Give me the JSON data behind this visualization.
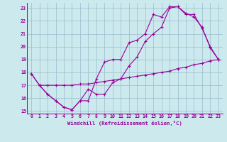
{
  "xlabel": "Windchill (Refroidissement éolien,°C)",
  "xlim": [
    -0.5,
    23.5
  ],
  "ylim": [
    14.8,
    23.4
  ],
  "yticks": [
    15,
    16,
    17,
    18,
    19,
    20,
    21,
    22,
    23
  ],
  "xticks": [
    0,
    1,
    2,
    3,
    4,
    5,
    6,
    7,
    8,
    9,
    10,
    11,
    12,
    13,
    14,
    15,
    16,
    17,
    18,
    19,
    20,
    21,
    22,
    23
  ],
  "bg_color": "#cce9ee",
  "line_color": "#990099",
  "grid_color": "#99bbcc",
  "line1_x": [
    0,
    1,
    2,
    3,
    4,
    5,
    6,
    7,
    8,
    9,
    10,
    11,
    12,
    13,
    14,
    15,
    16,
    17,
    18,
    19,
    20,
    21,
    22,
    23
  ],
  "line1_y": [
    17.9,
    17.0,
    16.3,
    15.8,
    15.3,
    15.1,
    15.8,
    15.8,
    17.5,
    18.8,
    19.0,
    19.0,
    20.3,
    20.5,
    21.0,
    22.5,
    22.3,
    23.1,
    23.1,
    22.6,
    22.3,
    21.5,
    19.9,
    19.0
  ],
  "line2_x": [
    1,
    2,
    3,
    4,
    5,
    6,
    7,
    8,
    9,
    10,
    11,
    12,
    13,
    14,
    15,
    16,
    17,
    18,
    19,
    20,
    21,
    22,
    23
  ],
  "line2_y": [
    17.0,
    16.3,
    15.8,
    15.3,
    15.1,
    15.8,
    16.7,
    16.3,
    16.3,
    17.2,
    17.5,
    18.5,
    19.2,
    20.4,
    21.0,
    21.5,
    23.0,
    23.1,
    22.5,
    22.5,
    21.4,
    20.0,
    19.0
  ],
  "line3_x": [
    0,
    1,
    2,
    3,
    4,
    5,
    6,
    7,
    8,
    9,
    10,
    11,
    12,
    13,
    14,
    15,
    16,
    17,
    18,
    19,
    20,
    21,
    22,
    23
  ],
  "line3_y": [
    17.9,
    17.0,
    17.0,
    17.0,
    17.0,
    17.0,
    17.1,
    17.1,
    17.2,
    17.3,
    17.4,
    17.5,
    17.6,
    17.7,
    17.8,
    17.9,
    18.0,
    18.1,
    18.3,
    18.4,
    18.6,
    18.7,
    18.9,
    19.0
  ]
}
